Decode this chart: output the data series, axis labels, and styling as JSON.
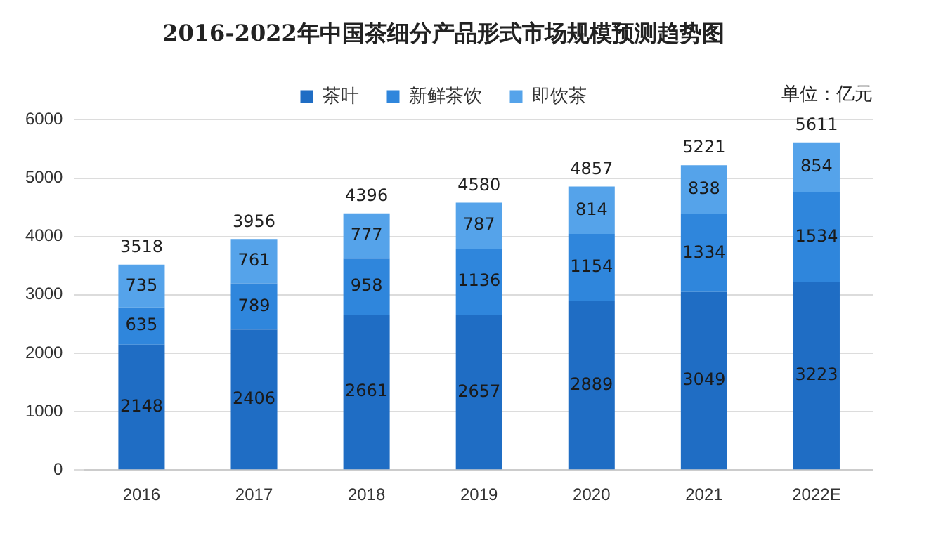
{
  "chart_data": {
    "type": "bar",
    "title": "2016-2022年中国茶细分产品形式市场规模预测趋势图",
    "annotations": [
      "单位：亿元"
    ],
    "categories": [
      "2016",
      "2017",
      "2018",
      "2019",
      "2020",
      "2021",
      "2022E"
    ],
    "stacked": true,
    "series": [
      {
        "name": "茶叶",
        "color": "#1f6dc4",
        "values": [
          2148,
          2406,
          2661,
          2657,
          2889,
          3049,
          3223
        ]
      },
      {
        "name": "新鲜茶饮",
        "color": "#2f86dc",
        "values": [
          635,
          789,
          958,
          1136,
          1154,
          1334,
          1534
        ]
      },
      {
        "name": "即饮茶",
        "color": "#55a3ea",
        "values": [
          735,
          761,
          777,
          787,
          814,
          838,
          854
        ]
      }
    ],
    "totals": [
      "3518",
      "3956",
      "4396",
      "4580",
      "4857",
      "5221",
      "5611"
    ],
    "data_labels": true,
    "ylim": [
      0,
      6000
    ],
    "yticks": [
      0,
      1000,
      2000,
      3000,
      4000,
      5000,
      6000
    ],
    "grid": "y",
    "legend": "top"
  }
}
